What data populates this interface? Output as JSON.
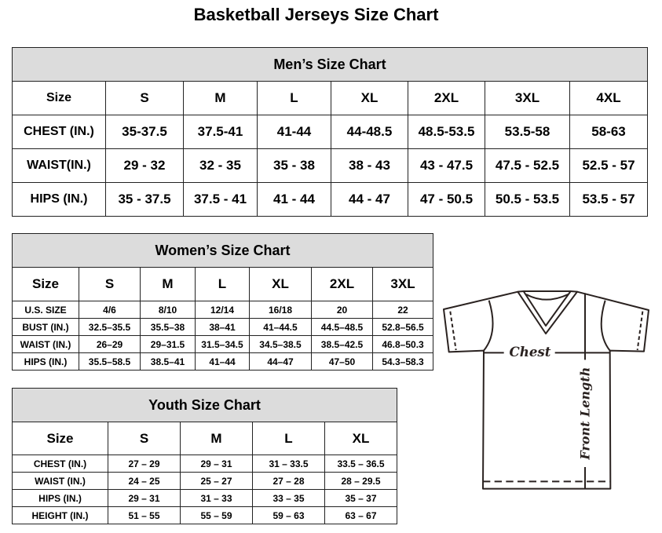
{
  "title": "Basketball Jerseys Size Chart",
  "tables": {
    "men": {
      "title": "Men’s Size Chart",
      "header": [
        "Size",
        "S",
        "M",
        "L",
        "XL",
        "2XL",
        "3XL",
        "4XL"
      ],
      "rows": [
        [
          "CHEST (IN.)",
          "35-37.5",
          "37.5-41",
          "41-44",
          "44-48.5",
          "48.5-53.5",
          "53.5-58",
          "58-63"
        ],
        [
          "WAIST(IN.)",
          "29 - 32",
          "32 - 35",
          "35 - 38",
          "38 - 43",
          "43 - 47.5",
          "47.5 - 52.5",
          "52.5 - 57"
        ],
        [
          "HIPS (IN.)",
          "35 - 37.5",
          "37.5 - 41",
          "41 - 44",
          "44 - 47",
          "47 - 50.5",
          "50.5 - 53.5",
          "53.5 - 57"
        ]
      ]
    },
    "women": {
      "title": "Women’s Size Chart",
      "header": [
        "Size",
        "S",
        "M",
        "L",
        "XL",
        "2XL",
        "3XL"
      ],
      "rows": [
        [
          "U.S.  SIZE",
          "4/6",
          "8/10",
          "12/14",
          "16/18",
          "20",
          "22"
        ],
        [
          "BUST  (IN.)",
          "32.5–35.5",
          "35.5–38",
          "38–41",
          "41–44.5",
          "44.5–48.5",
          "52.8–56.5"
        ],
        [
          "WAIST  (IN.)",
          "26–29",
          "29–31.5",
          "31.5–34.5",
          "34.5–38.5",
          "38.5–42.5",
          "46.8–50.3"
        ],
        [
          "HIPS  (IN.)",
          "35.5–58.5",
          "38.5–41",
          "41–44",
          "44–47",
          "47–50",
          "54.3–58.3"
        ]
      ]
    },
    "youth": {
      "title": "Youth Size Chart",
      "header": [
        "Size",
        "S",
        "M",
        "L",
        "XL"
      ],
      "rows": [
        [
          "CHEST  (IN.)",
          "27  –  29",
          "29  –  31",
          "31  –  33.5",
          "33.5  –  36.5"
        ],
        [
          "WAIST  (IN.)",
          "24  –  25",
          "25  –  27",
          "27  –  28",
          "28  –  29.5"
        ],
        [
          "HIPS  (IN.)",
          "29  –  31",
          "31  –  33",
          "33  –  35",
          "35  –  37"
        ],
        [
          "HEIGHT  (IN.)",
          "51  –  55",
          "55  –  59",
          "59  –  63",
          "63  –  67"
        ]
      ]
    }
  },
  "diagram": {
    "chest_label": "Chest",
    "length_label": "Front Length"
  },
  "colors": {
    "header_bg": "#dcdcdc",
    "line": "#2a2220"
  }
}
